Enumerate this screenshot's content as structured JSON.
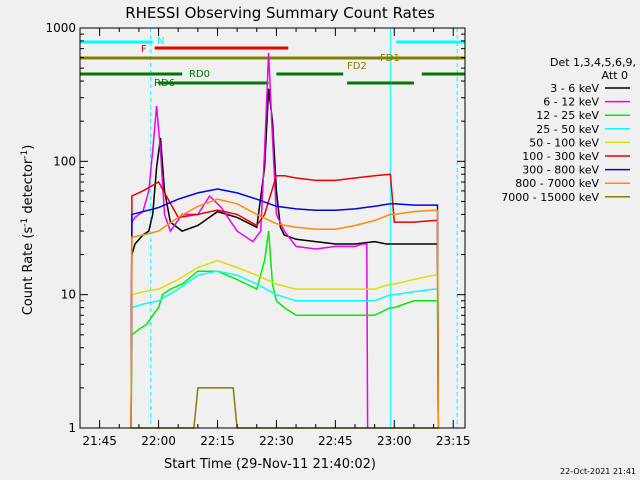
{
  "chart_data": {
    "type": "line",
    "title": "RHESSI Observing Summary Count Rates",
    "xlabel": "Start Time (29-Nov-11 21:40:02)",
    "ylabel": "Count Rate (s",
    "ylabel_sup": "-1",
    "ylabel_rest": " detector",
    "ylabel_sup2": "-1",
    "ylabel_close": ")",
    "y_scale": "log",
    "ylim": [
      1,
      1000
    ],
    "xlim_minutes": [
      0,
      98
    ],
    "x_tick_labels": [
      "21:45",
      "22:00",
      "22:15",
      "22:30",
      "22:45",
      "23:00",
      "23:15"
    ],
    "x_tick_minutes": [
      5,
      20,
      35,
      50,
      65,
      80,
      95
    ],
    "y_tick_labels": [
      "1",
      "10",
      "100",
      "1000"
    ],
    "y_tick_values": [
      1,
      10,
      100,
      1000
    ],
    "legend_header": [
      "Det 1,3,4,5,6,9,",
      "Att 0"
    ],
    "legend_placement": "right",
    "footer_date": "22-Oct-2021 21:41",
    "flags": {
      "N": "N",
      "F": "F",
      "FD1": "FD1",
      "FD2": "FD2",
      "RD0": "RD0",
      "RD6": "RD6"
    },
    "flag_colors": {
      "N": "#00ffff",
      "F": "#ee0000",
      "FD": "#808000",
      "RD": "#007700"
    },
    "flag_intervals": {
      "N": [
        [
          0,
          18.5
        ],
        [
          80.5,
          98
        ]
      ],
      "F": [
        [
          19,
          53
        ]
      ],
      "FD": [
        [
          0,
          98
        ]
      ],
      "RD0_lower": [
        [
          0,
          26
        ],
        [
          50,
          67
        ],
        [
          87,
          98
        ]
      ],
      "RD6": [
        [
          20,
          48
        ],
        [
          68,
          85
        ]
      ]
    },
    "vertical_lines": {
      "cyan_solid": [
        0,
        79
      ],
      "cyan_dashed": [
        18,
        96
      ]
    },
    "series": [
      {
        "name": "3 - 6 keV",
        "color": "#000000",
        "x": [
          13,
          13.2,
          14,
          16,
          17.5,
          18.5,
          19.5,
          20.5,
          21.5,
          23,
          26,
          30,
          35,
          40,
          45,
          47,
          48,
          49,
          50,
          51,
          52,
          55,
          60,
          65,
          70,
          75,
          78,
          80,
          85,
          90,
          91,
          91.2
        ],
        "y": [
          1,
          20,
          24,
          28,
          30,
          40,
          90,
          150,
          60,
          35,
          30,
          33,
          42,
          38,
          32,
          90,
          350,
          200,
          60,
          32,
          28,
          26,
          25,
          24,
          24,
          25,
          24,
          24,
          24,
          24,
          24,
          1
        ]
      },
      {
        "name": "6 - 12 keV",
        "color": "#ee00ee",
        "x": [
          13,
          13.2,
          14,
          16,
          17.5,
          18.5,
          19.5,
          20.5,
          21.5,
          23,
          26,
          30,
          33,
          36,
          40,
          44,
          46,
          47,
          48,
          49,
          50,
          52,
          55,
          60,
          65,
          70,
          72,
          73,
          73.2
        ],
        "y": [
          1,
          35,
          38,
          42,
          60,
          120,
          260,
          120,
          40,
          30,
          40,
          40,
          55,
          45,
          30,
          25,
          30,
          120,
          650,
          150,
          40,
          30,
          23,
          22,
          23,
          23,
          24,
          24,
          1
        ]
      },
      {
        "name": "12 - 25 keV",
        "color": "#00ee00",
        "x": [
          13,
          13.2,
          15,
          17,
          18.5,
          20,
          21,
          23,
          26,
          30,
          35,
          40,
          45,
          47,
          48,
          49,
          50,
          52,
          55,
          60,
          65,
          70,
          75,
          79,
          80,
          85,
          90,
          91,
          91.2
        ],
        "y": [
          1,
          5,
          5.5,
          6,
          7,
          8,
          10,
          11,
          12,
          15,
          15,
          13,
          11,
          18,
          30,
          12,
          9,
          8,
          7,
          7,
          7,
          7,
          7,
          8,
          8,
          9,
          9,
          9,
          1
        ]
      },
      {
        "name": "25 - 50 keV",
        "color": "#00ffff",
        "x": [
          13,
          13.2,
          16,
          20,
          25,
          30,
          35,
          40,
          45,
          50,
          55,
          60,
          65,
          70,
          75,
          79,
          80,
          85,
          90,
          91,
          91.2
        ],
        "y": [
          1,
          8,
          8.5,
          9,
          11,
          14,
          15,
          14,
          12,
          10,
          9,
          9,
          9,
          9,
          9,
          10,
          10,
          10.5,
          11,
          11,
          1
        ]
      },
      {
        "name": "50 - 100 keV",
        "color": "#dddd00",
        "x": [
          13,
          13.2,
          16,
          20,
          25,
          30,
          35,
          40,
          45,
          50,
          55,
          60,
          65,
          70,
          75,
          79,
          80,
          85,
          90,
          91,
          91.2
        ],
        "y": [
          1,
          10,
          10.5,
          11,
          13,
          16,
          18,
          16,
          14,
          12,
          11,
          11,
          11,
          11,
          11,
          12,
          12,
          13,
          14,
          14,
          1
        ]
      },
      {
        "name": "100 - 300 keV",
        "color": "#ee0000",
        "x": [
          13,
          13.2,
          16,
          20,
          25,
          30,
          35,
          40,
          45,
          47,
          50,
          52,
          55,
          60,
          65,
          70,
          75,
          79,
          80,
          85,
          90,
          91,
          91.2
        ],
        "y": [
          1,
          55,
          60,
          70,
          38,
          40,
          43,
          40,
          33,
          40,
          78,
          78,
          75,
          72,
          72,
          75,
          78,
          80,
          35,
          35,
          36,
          36,
          1
        ]
      },
      {
        "name": "300 - 800 keV",
        "color": "#0000ee",
        "x": [
          13,
          13.2,
          16,
          20,
          25,
          30,
          35,
          40,
          45,
          50,
          55,
          60,
          65,
          70,
          75,
          79,
          80,
          85,
          90,
          91,
          91.2
        ],
        "y": [
          1,
          40,
          42,
          45,
          52,
          58,
          62,
          58,
          52,
          46,
          44,
          43,
          43,
          44,
          46,
          48,
          48,
          47,
          47,
          47,
          1
        ]
      },
      {
        "name": "800 - 7000 keV",
        "color": "#ff8c00",
        "x": [
          13,
          13.2,
          16,
          20,
          25,
          30,
          35,
          40,
          45,
          50,
          55,
          60,
          65,
          70,
          75,
          79,
          80,
          85,
          90,
          91,
          91.2
        ],
        "y": [
          1,
          27,
          28,
          30,
          38,
          46,
          52,
          48,
          40,
          34,
          32,
          31,
          31,
          33,
          36,
          40,
          40,
          42,
          43,
          43,
          1
        ]
      },
      {
        "name": "7000 - 15000 keV",
        "color": "#808000",
        "x": [
          13,
          13.2,
          16,
          20,
          25,
          29,
          30,
          35,
          39,
          40,
          45,
          50,
          55,
          60,
          65,
          70,
          75,
          79,
          80,
          85,
          90,
          91,
          91.2
        ],
        "y": [
          1,
          1,
          1,
          1,
          1,
          1,
          2,
          2,
          2,
          1,
          1,
          1,
          1,
          1,
          1,
          1,
          1,
          1,
          1,
          1,
          1,
          1,
          1
        ]
      }
    ]
  }
}
